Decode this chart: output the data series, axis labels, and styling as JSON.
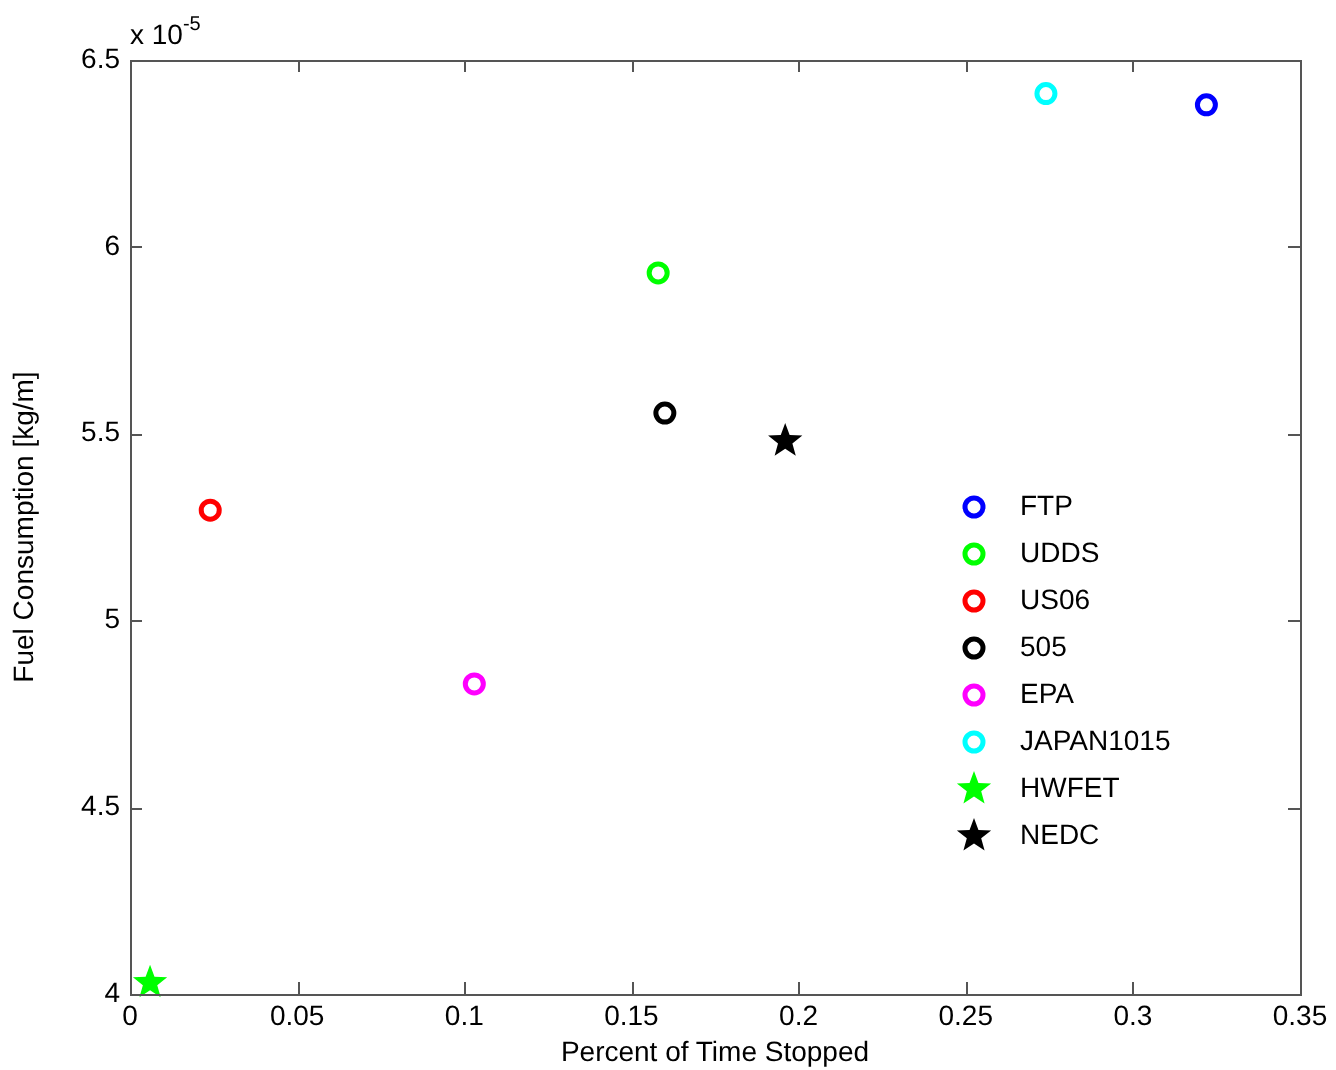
{
  "chart_data": {
    "type": "scatter",
    "xlabel": "Percent of Time Stopped",
    "ylabel": "Fuel Consumption [kg/m]",
    "annotations": [
      "x 10$^{-5}$"
    ],
    "xlim": [
      0,
      0.35
    ],
    "xticks": [
      0,
      0.05,
      0.1,
      0.15,
      0.2,
      0.25,
      0.3,
      0.35
    ],
    "ylim": [
      4,
      6.5
    ],
    "yticks": [
      4,
      4.5,
      5,
      5.5,
      6,
      6.5
    ],
    "grid": false,
    "legend": "right",
    "series": [
      {
        "name": "FTP",
        "color": "#0000ff",
        "marker": "circle",
        "x": [
          0.322
        ],
        "values": [
          6.38
        ]
      },
      {
        "name": "UDDS",
        "color": "#00ff00",
        "marker": "circle",
        "x": [
          0.158
        ],
        "values": [
          5.93
        ]
      },
      {
        "name": "US06",
        "color": "#ff0000",
        "marker": "circle",
        "x": [
          0.024
        ],
        "values": [
          5.295
        ]
      },
      {
        "name": "505",
        "color": "#000000",
        "marker": "circle",
        "x": [
          0.16
        ],
        "values": [
          5.555
        ]
      },
      {
        "name": "EPA",
        "color": "#ff00ff",
        "marker": "circle",
        "x": [
          0.103
        ],
        "values": [
          4.83
        ]
      },
      {
        "name": "JAPAN1015",
        "color": "#00ffff",
        "marker": "circle",
        "x": [
          0.274
        ],
        "values": [
          6.41
        ]
      },
      {
        "name": "HWFET",
        "color": "#00ff00",
        "marker": "star",
        "x": [
          0.006
        ],
        "values": [
          4.03
        ]
      },
      {
        "name": "NEDC",
        "color": "#000000",
        "marker": "star",
        "x": [
          0.196
        ],
        "values": [
          5.48
        ]
      }
    ]
  }
}
